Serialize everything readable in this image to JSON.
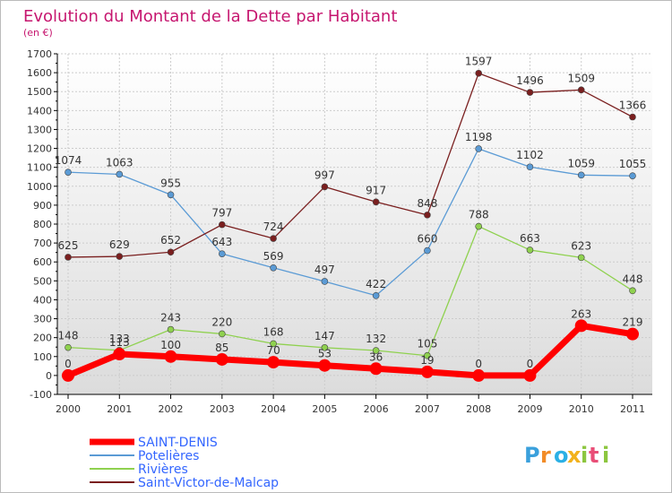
{
  "chart_data": {
    "type": "line",
    "title": "Evolution du Montant de la Dette par Habitant",
    "unit_label": "(en €)",
    "xlabel": "",
    "ylabel": "",
    "x": [
      "2000",
      "2001",
      "2002",
      "2003",
      "2004",
      "2005",
      "2006",
      "2007",
      "2008",
      "2009",
      "2010",
      "2011"
    ],
    "ylim": [
      -100,
      1700
    ],
    "yticks": [
      -100,
      0,
      100,
      200,
      300,
      400,
      500,
      600,
      700,
      800,
      900,
      1000,
      1100,
      1200,
      1300,
      1400,
      1500,
      1600,
      1700
    ],
    "grid": true,
    "legend_position": "bottom-left",
    "series": [
      {
        "name": "SAINT-DENIS",
        "color": "#ff0000",
        "emphasis": true,
        "values": [
          0,
          113,
          100,
          85,
          70,
          53,
          36,
          19,
          0,
          0,
          263,
          219
        ],
        "labels": [
          "0",
          "113",
          "100",
          "85",
          "70",
          "53",
          "36",
          "19",
          "0",
          "0",
          "263",
          "219"
        ]
      },
      {
        "name": "Potelières",
        "color": "#5b9bd5",
        "emphasis": false,
        "values": [
          1074,
          1063,
          955,
          643,
          569,
          497,
          422,
          660,
          1198,
          1102,
          1059,
          1055
        ],
        "labels": [
          "1074",
          "1063",
          "955",
          "643",
          "569",
          "497",
          "422",
          "660",
          "1198",
          "1102",
          "1059",
          "1055"
        ]
      },
      {
        "name": "Rivières",
        "color": "#8fd14f",
        "emphasis": false,
        "values": [
          148,
          133,
          243,
          220,
          168,
          147,
          132,
          105,
          788,
          663,
          623,
          448
        ],
        "labels": [
          "148",
          "133",
          "243",
          "220",
          "168",
          "147",
          "132",
          "105",
          "788",
          "663",
          "623",
          "448"
        ]
      },
      {
        "name": "Saint-Victor-de-Malcap",
        "color": "#7a1f1f",
        "emphasis": false,
        "values": [
          625,
          629,
          652,
          797,
          724,
          997,
          917,
          848,
          1597,
          1496,
          1509,
          1366
        ],
        "labels": [
          "625",
          "629",
          "652",
          "797",
          "724",
          "997",
          "917",
          "848",
          "1597",
          "1496",
          "1509",
          "1366"
        ]
      }
    ]
  },
  "colors": {
    "title": "#c6166f",
    "legend_text": "#3366ff",
    "axis": "#000000",
    "grid": "#cccccc",
    "plot_bg_top": "#ffffff",
    "plot_bg_bottom": "#dcdcdc"
  },
  "brand": {
    "logo_text": "Proxiti",
    "logo_letters": [
      {
        "ch": "P",
        "color": "#3aa0dc"
      },
      {
        "ch": "r",
        "color": "#f28c28"
      },
      {
        "ch": "o",
        "color": "#2bb0e5"
      },
      {
        "ch": "x",
        "color": "#f2b21c"
      },
      {
        "ch": "i",
        "color": "#8cc63f"
      },
      {
        "ch": "t",
        "color": "#e94e77"
      },
      {
        "ch": "i",
        "color": "#8cc63f"
      }
    ]
  }
}
